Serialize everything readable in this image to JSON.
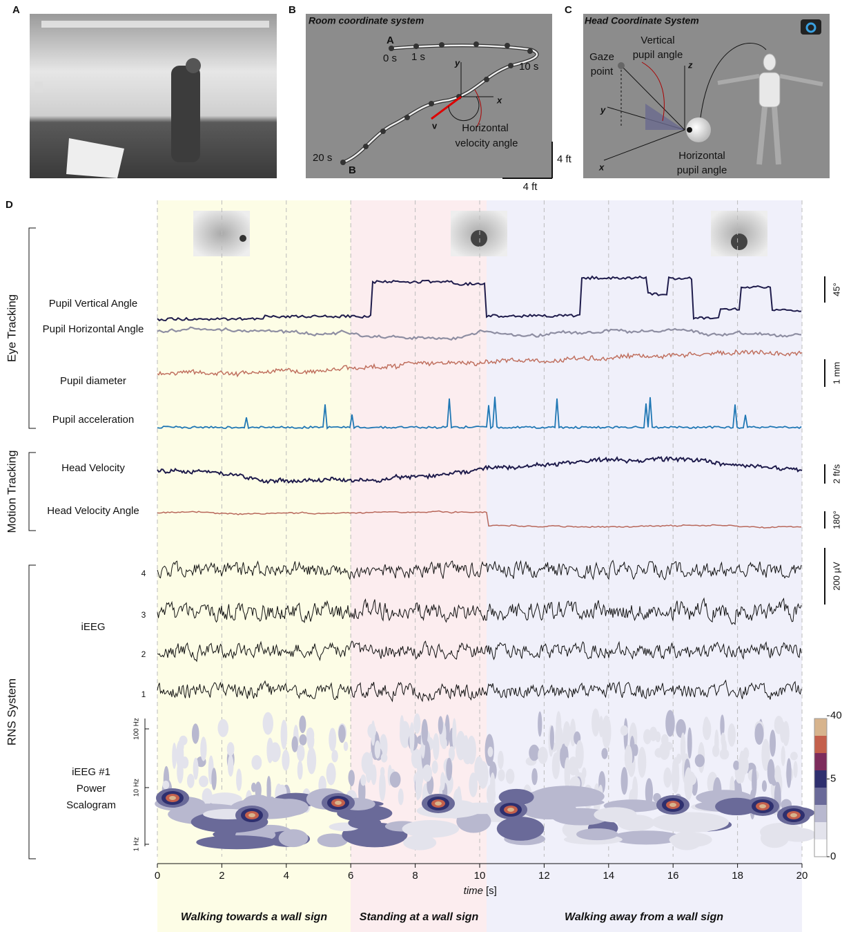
{
  "panels": {
    "A": {
      "label": "A"
    },
    "B": {
      "label": "B",
      "title": "Room coordinate system",
      "start": "A",
      "end": "B",
      "time_labels": [
        "0 s",
        "1 s",
        "10 s",
        "20 s"
      ],
      "axis_y": "y",
      "axis_x": "x",
      "vector": "v",
      "annotation": [
        "Horizontal",
        "velocity angle"
      ],
      "scale_y": "4 ft",
      "scale_x": "4 ft"
    },
    "C": {
      "label": "C",
      "title": "Head Coordinate System",
      "gaze": [
        "Gaze",
        "point"
      ],
      "vertical": [
        "Vertical",
        "pupil angle"
      ],
      "horizontal": [
        "Horizontal",
        "pupil angle"
      ],
      "axis_z": "z",
      "axis_y": "y",
      "axis_x": "x"
    },
    "D": {
      "label": "D",
      "groups": [
        {
          "name": "Eye Tracking",
          "traces": [
            "Pupil Vertical Angle",
            "Pupil Horizontal Angle",
            "Pupil diameter",
            "Pupil acceleration"
          ]
        },
        {
          "name": "Motion Tracking",
          "traces": [
            "Head Velocity",
            "Head Velocity Angle"
          ]
        },
        {
          "name": "RNS System",
          "traces": [
            "iEEG"
          ]
        }
      ],
      "scale_bars": [
        "45°",
        "1 mm",
        "2 ft/s",
        "180°",
        "200 µV"
      ],
      "channels": [
        "4",
        "3",
        "2",
        "1"
      ],
      "scalogram": {
        "label": [
          "iEEG #1",
          "Power",
          "Scalogram"
        ],
        "freq_ticks": [
          "100 Hz",
          "10 Hz",
          "1 Hz"
        ],
        "colorbar_ticks": [
          40,
          5,
          0
        ]
      },
      "x_axis": {
        "label": "time",
        "unit": "[s]",
        "xlim": [
          0,
          20
        ],
        "ticks": [
          0,
          2,
          4,
          6,
          8,
          10,
          12,
          14,
          16,
          18,
          20
        ]
      },
      "phases": [
        "Walking towards a wall sign",
        "Standing at a wall sign",
        "Walking away from a wall sign"
      ]
    }
  }
}
